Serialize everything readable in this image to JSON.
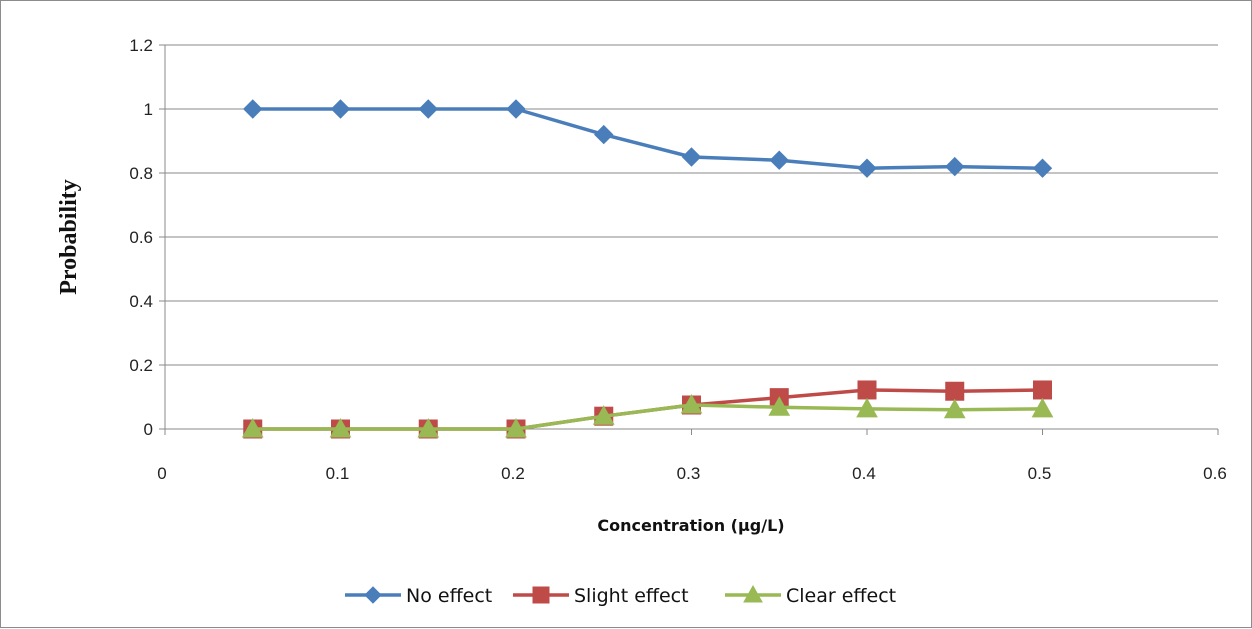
{
  "chart_data": {
    "type": "line",
    "title": "",
    "xlabel": "Concentration (μg/L)",
    "ylabel": "Probability",
    "xlim": [
      0,
      0.6
    ],
    "ylim": [
      0,
      1.2
    ],
    "xticks": [
      "0",
      "0.1",
      "0.2",
      "0.3",
      "0.4",
      "0.5",
      "0.6"
    ],
    "yticks": [
      "0",
      "0.2",
      "0.4",
      "0.6",
      "0.8",
      "1",
      "1.2"
    ],
    "grid": "horizontal",
    "legend": "bottom",
    "x": [
      0.05,
      0.1,
      0.15,
      0.2,
      0.25,
      0.3,
      0.35,
      0.4,
      0.45,
      0.5
    ],
    "series": [
      {
        "name": "No effect",
        "marker": "diamond",
        "color": "#4A7EBB",
        "values": [
          1.0,
          1.0,
          1.0,
          1.0,
          0.92,
          0.85,
          0.84,
          0.815,
          0.82,
          0.815
        ]
      },
      {
        "name": "Slight effect",
        "marker": "square",
        "color": "#BE4B48",
        "values": [
          0.0,
          0.0,
          0.0,
          0.0,
          0.04,
          0.075,
          0.098,
          0.122,
          0.118,
          0.122
        ]
      },
      {
        "name": "Clear effect",
        "marker": "triangle",
        "color": "#98B954",
        "values": [
          0.0,
          0.0,
          0.0,
          0.0,
          0.04,
          0.075,
          0.068,
          0.063,
          0.06,
          0.063
        ]
      }
    ]
  }
}
